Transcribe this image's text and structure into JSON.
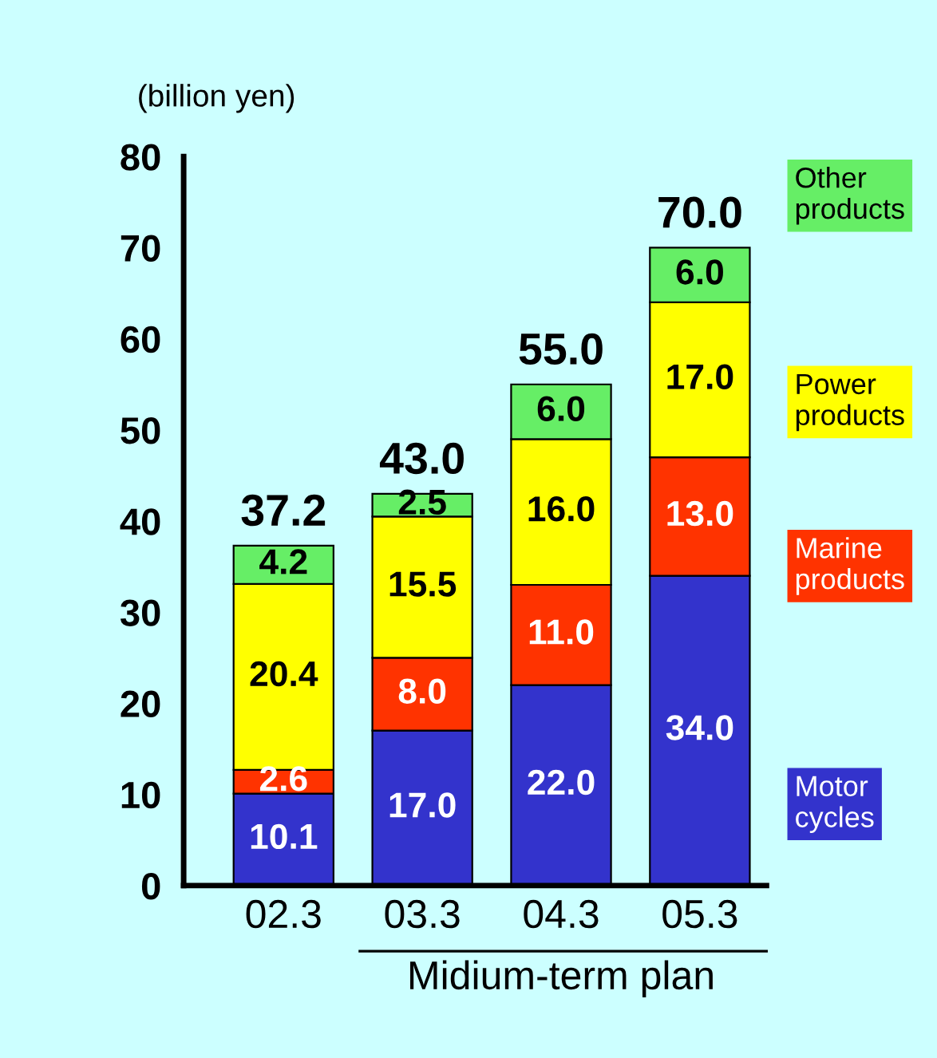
{
  "chart_data": {
    "type": "bar",
    "stacked": true,
    "ylabel": "(billion yen)",
    "categories": [
      "02.3",
      "03.3",
      "04.3",
      "05.3"
    ],
    "series": [
      {
        "name": "Motor cycles",
        "color": "#3333cc",
        "values": [
          10.1,
          17.0,
          22.0,
          34.0
        ]
      },
      {
        "name": "Marine products",
        "color": "#ff3300",
        "values": [
          2.6,
          8.0,
          11.0,
          13.0
        ]
      },
      {
        "name": "Power products",
        "color": "#ffff00",
        "values": [
          20.4,
          15.5,
          16.0,
          17.0
        ]
      },
      {
        "name": "Other products",
        "color": "#66ee66",
        "values": [
          4.2,
          2.5,
          6.0,
          6.0
        ]
      }
    ],
    "value_labels": [
      [
        "10.1",
        "17.0",
        "22.0",
        "34.0"
      ],
      [
        "2.6",
        "8.0",
        "11.0",
        "13.0"
      ],
      [
        "20.4",
        "15.5",
        "16.0",
        "17.0"
      ],
      [
        "4.2",
        "2.5",
        "6.0",
        "6.0"
      ]
    ],
    "totals": [
      "37.2",
      "43.0",
      "55.0",
      "70.0"
    ],
    "ylim": [
      0,
      80
    ],
    "yticks": [
      0,
      10,
      20,
      30,
      40,
      50,
      60,
      70,
      80
    ],
    "annotations": [
      "Midium-term plan"
    ],
    "legend": "right",
    "grid": false
  }
}
